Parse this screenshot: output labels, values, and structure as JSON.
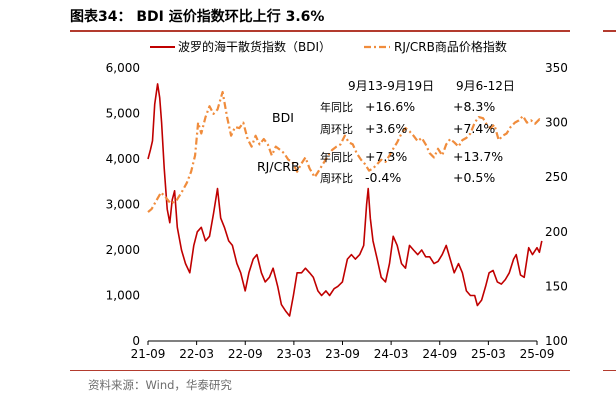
{
  "header": {
    "title": "图表34：  BDI 运价指数环比上行 3.6%"
  },
  "footer": {
    "source": "资料来源：Wind，华泰研究"
  },
  "chart_data": {
    "type": "line",
    "legend": {
      "placement": "top",
      "items": [
        {
          "name": "波罗的海干散货指数（BDI）",
          "color": "#c00000",
          "style": "solid",
          "axis": "left"
        },
        {
          "name": "RJ/CRB商品价格指数",
          "color": "#f08c3c",
          "style": "dash-dot",
          "axis": "right"
        }
      ]
    },
    "x_ticks": [
      "21-09",
      "22-03",
      "22-09",
      "23-03",
      "23-09",
      "24-03",
      "24-09",
      "25-03",
      "25-09"
    ],
    "x_range": [
      "2021-09",
      "2025-09"
    ],
    "y_left": {
      "ticks": [
        "0",
        "1,000",
        "2,000",
        "3,000",
        "4,000",
        "5,000",
        "6,000"
      ],
      "min": 0,
      "max": 6000
    },
    "y_right": {
      "ticks": [
        "100",
        "150",
        "200",
        "250",
        "300",
        "350"
      ],
      "min": 100,
      "max": 350
    },
    "grid": false,
    "series": [
      {
        "name": "波罗的海干散货指数（BDI）",
        "axis": "left",
        "color": "#c00000",
        "points": [
          [
            "2021-09-01",
            4000
          ],
          [
            "2021-09-10",
            4200
          ],
          [
            "2021-09-18",
            4400
          ],
          [
            "2021-09-26",
            5200
          ],
          [
            "2021-10-07",
            5650
          ],
          [
            "2021-10-15",
            5350
          ],
          [
            "2021-10-22",
            4800
          ],
          [
            "2021-11-01",
            3800
          ],
          [
            "2021-11-12",
            2900
          ],
          [
            "2021-11-22",
            2600
          ],
          [
            "2021-12-01",
            3100
          ],
          [
            "2021-12-10",
            3300
          ],
          [
            "2021-12-20",
            2500
          ],
          [
            "2022-01-05",
            2000
          ],
          [
            "2022-01-20",
            1700
          ],
          [
            "2022-02-05",
            1500
          ],
          [
            "2022-02-20",
            2100
          ],
          [
            "2022-03-05",
            2400
          ],
          [
            "2022-03-20",
            2500
          ],
          [
            "2022-04-05",
            2200
          ],
          [
            "2022-04-20",
            2300
          ],
          [
            "2022-05-05",
            2800
          ],
          [
            "2022-05-20",
            3350
          ],
          [
            "2022-06-01",
            2700
          ],
          [
            "2022-06-15",
            2500
          ],
          [
            "2022-07-01",
            2200
          ],
          [
            "2022-07-15",
            2100
          ],
          [
            "2022-08-01",
            1700
          ],
          [
            "2022-08-15",
            1500
          ],
          [
            "2022-09-01",
            1100
          ],
          [
            "2022-09-15",
            1500
          ],
          [
            "2022-10-01",
            1800
          ],
          [
            "2022-10-15",
            1900
          ],
          [
            "2022-11-01",
            1500
          ],
          [
            "2022-11-15",
            1300
          ],
          [
            "2022-12-01",
            1400
          ],
          [
            "2022-12-15",
            1600
          ],
          [
            "2023-01-01",
            1200
          ],
          [
            "2023-01-15",
            800
          ],
          [
            "2023-02-01",
            650
          ],
          [
            "2023-02-15",
            550
          ],
          [
            "2023-03-01",
            1000
          ],
          [
            "2023-03-15",
            1500
          ],
          [
            "2023-04-01",
            1500
          ],
          [
            "2023-04-15",
            1600
          ],
          [
            "2023-05-01",
            1500
          ],
          [
            "2023-05-15",
            1400
          ],
          [
            "2023-06-01",
            1100
          ],
          [
            "2023-06-15",
            1000
          ],
          [
            "2023-07-01",
            1100
          ],
          [
            "2023-07-15",
            1000
          ],
          [
            "2023-08-01",
            1150
          ],
          [
            "2023-08-15",
            1200
          ],
          [
            "2023-09-01",
            1300
          ],
          [
            "2023-09-20",
            1800
          ],
          [
            "2023-10-05",
            1900
          ],
          [
            "2023-10-20",
            1800
          ],
          [
            "2023-11-05",
            1900
          ],
          [
            "2023-11-20",
            2100
          ],
          [
            "2023-12-01",
            3000
          ],
          [
            "2023-12-07",
            3350
          ],
          [
            "2023-12-15",
            2700
          ],
          [
            "2023-12-25",
            2200
          ],
          [
            "2024-01-10",
            1800
          ],
          [
            "2024-01-25",
            1400
          ],
          [
            "2024-02-10",
            1300
          ],
          [
            "2024-02-25",
            1700
          ],
          [
            "2024-03-10",
            2300
          ],
          [
            "2024-03-25",
            2100
          ],
          [
            "2024-04-10",
            1700
          ],
          [
            "2024-04-25",
            1600
          ],
          [
            "2024-05-10",
            2100
          ],
          [
            "2024-05-25",
            2000
          ],
          [
            "2024-06-10",
            1900
          ],
          [
            "2024-06-25",
            2000
          ],
          [
            "2024-07-10",
            1850
          ],
          [
            "2024-07-25",
            1850
          ],
          [
            "2024-08-10",
            1700
          ],
          [
            "2024-08-25",
            1750
          ],
          [
            "2024-09-10",
            1900
          ],
          [
            "2024-09-25",
            2100
          ],
          [
            "2024-10-10",
            1800
          ],
          [
            "2024-10-25",
            1500
          ],
          [
            "2024-11-10",
            1700
          ],
          [
            "2024-11-25",
            1500
          ],
          [
            "2024-12-10",
            1100
          ],
          [
            "2024-12-25",
            1000
          ],
          [
            "2025-01-10",
            1000
          ],
          [
            "2025-01-20",
            780
          ],
          [
            "2025-02-05",
            900
          ],
          [
            "2025-02-20",
            1200
          ],
          [
            "2025-03-05",
            1500
          ],
          [
            "2025-03-20",
            1550
          ],
          [
            "2025-04-05",
            1300
          ],
          [
            "2025-04-20",
            1250
          ],
          [
            "2025-05-05",
            1350
          ],
          [
            "2025-05-20",
            1500
          ],
          [
            "2025-06-05",
            1800
          ],
          [
            "2025-06-15",
            1900
          ],
          [
            "2025-07-01",
            1450
          ],
          [
            "2025-07-15",
            1400
          ],
          [
            "2025-08-01",
            2050
          ],
          [
            "2025-08-15",
            1900
          ],
          [
            "2025-09-01",
            2050
          ],
          [
            "2025-09-10",
            1950
          ],
          [
            "2025-09-19",
            2200
          ]
        ]
      },
      {
        "name": "RJ/CRB商品价格指数",
        "axis": "right",
        "color": "#f08c3c",
        "points": [
          [
            "2021-09-01",
            218
          ],
          [
            "2021-09-15",
            221
          ],
          [
            "2021-10-01",
            228
          ],
          [
            "2021-10-20",
            236
          ],
          [
            "2021-11-05",
            232
          ],
          [
            "2021-11-25",
            226
          ],
          [
            "2021-12-15",
            228
          ],
          [
            "2022-01-05",
            236
          ],
          [
            "2022-01-25",
            245
          ],
          [
            "2022-02-10",
            255
          ],
          [
            "2022-02-25",
            270
          ],
          [
            "2022-03-08",
            300
          ],
          [
            "2022-03-20",
            290
          ],
          [
            "2022-04-05",
            305
          ],
          [
            "2022-04-20",
            315
          ],
          [
            "2022-05-05",
            308
          ],
          [
            "2022-05-20",
            312
          ],
          [
            "2022-06-08",
            328
          ],
          [
            "2022-06-25",
            305
          ],
          [
            "2022-07-10",
            288
          ],
          [
            "2022-07-25",
            296
          ],
          [
            "2022-08-10",
            295
          ],
          [
            "2022-08-25",
            300
          ],
          [
            "2022-09-10",
            285
          ],
          [
            "2022-09-25",
            278
          ],
          [
            "2022-10-10",
            288
          ],
          [
            "2022-10-25",
            280
          ],
          [
            "2022-11-10",
            285
          ],
          [
            "2022-11-25",
            280
          ],
          [
            "2022-12-10",
            270
          ],
          [
            "2022-12-25",
            278
          ],
          [
            "2023-01-10",
            275
          ],
          [
            "2023-01-25",
            272
          ],
          [
            "2023-02-10",
            266
          ],
          [
            "2023-02-25",
            264
          ],
          [
            "2023-03-15",
            255
          ],
          [
            "2023-03-30",
            262
          ],
          [
            "2023-04-15",
            268
          ],
          [
            "2023-05-01",
            258
          ],
          [
            "2023-05-20",
            250
          ],
          [
            "2023-06-05",
            256
          ],
          [
            "2023-06-20",
            262
          ],
          [
            "2023-07-10",
            270
          ],
          [
            "2023-07-25",
            275
          ],
          [
            "2023-08-10",
            278
          ],
          [
            "2023-08-25",
            280
          ],
          [
            "2023-09-10",
            288
          ],
          [
            "2023-09-25",
            282
          ],
          [
            "2023-10-10",
            280
          ],
          [
            "2023-10-25",
            272
          ],
          [
            "2023-11-10",
            266
          ],
          [
            "2023-11-25",
            262
          ],
          [
            "2023-12-10",
            256
          ],
          [
            "2023-12-25",
            258
          ],
          [
            "2024-01-10",
            262
          ],
          [
            "2024-01-25",
            266
          ],
          [
            "2024-02-10",
            264
          ],
          [
            "2024-02-25",
            270
          ],
          [
            "2024-03-10",
            276
          ],
          [
            "2024-03-25",
            282
          ],
          [
            "2024-04-10",
            290
          ],
          [
            "2024-04-25",
            295
          ],
          [
            "2024-05-10",
            292
          ],
          [
            "2024-05-25",
            288
          ],
          [
            "2024-06-10",
            283
          ],
          [
            "2024-06-25",
            286
          ],
          [
            "2024-07-10",
            280
          ],
          [
            "2024-07-25",
            272
          ],
          [
            "2024-08-10",
            268
          ],
          [
            "2024-08-25",
            276
          ],
          [
            "2024-09-10",
            270
          ],
          [
            "2024-09-25",
            280
          ],
          [
            "2024-10-10",
            285
          ],
          [
            "2024-10-25",
            282
          ],
          [
            "2024-11-10",
            278
          ],
          [
            "2024-11-25",
            284
          ],
          [
            "2024-12-10",
            286
          ],
          [
            "2024-12-25",
            290
          ],
          [
            "2025-01-10",
            300
          ],
          [
            "2025-01-25",
            305
          ],
          [
            "2025-02-10",
            304
          ],
          [
            "2025-02-25",
            298
          ],
          [
            "2025-03-10",
            295
          ],
          [
            "2025-03-25",
            298
          ],
          [
            "2025-04-10",
            284
          ],
          [
            "2025-04-25",
            288
          ],
          [
            "2025-05-10",
            290
          ],
          [
            "2025-05-25",
            296
          ],
          [
            "2025-06-10",
            300
          ],
          [
            "2025-06-25",
            302
          ],
          [
            "2025-07-10",
            306
          ],
          [
            "2025-07-25",
            300
          ],
          [
            "2025-08-10",
            302
          ],
          [
            "2025-08-25",
            299
          ],
          [
            "2025-09-10",
            303
          ],
          [
            "2025-09-19",
            301
          ]
        ]
      }
    ],
    "annotations": {
      "labels": [
        {
          "id": "bdi_label",
          "text": "BDI"
        },
        {
          "id": "crb_label",
          "text": "RJ/CRB"
        }
      ],
      "period_headers": [
        "9月13-9月19日",
        "9月6-12日"
      ],
      "rows": [
        {
          "label": "年同比",
          "current": "+16.6%",
          "previous": "+8.3%"
        },
        {
          "label": "周环比",
          "current": "+3.6%",
          "previous": "+7.4%"
        },
        {
          "label": "年同比",
          "current": "+7.3%",
          "previous": "+13.7%"
        },
        {
          "label": "周环比",
          "current": "-0.4%",
          "previous": "+0.5%"
        }
      ]
    }
  }
}
